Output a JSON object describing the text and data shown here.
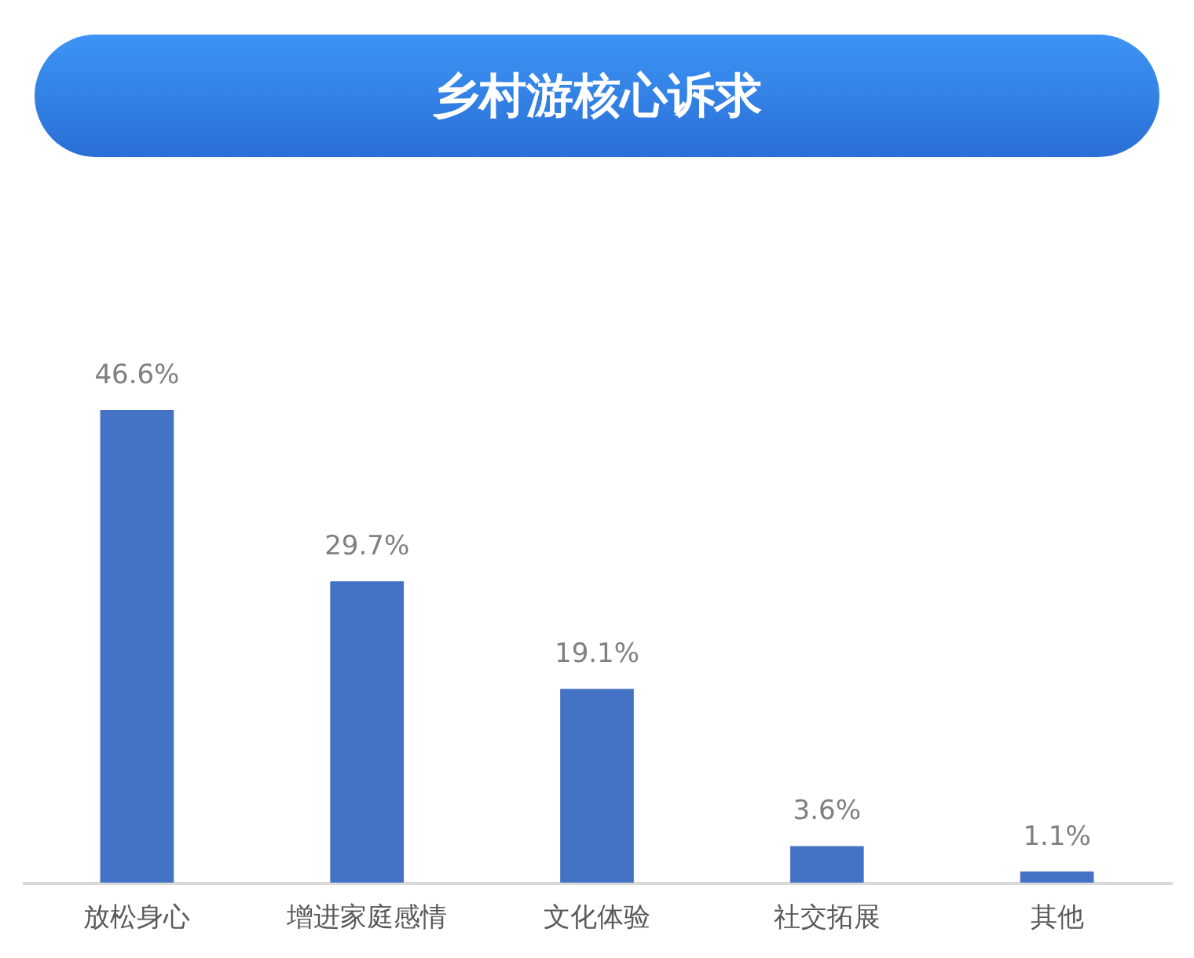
{
  "chart_data": {
    "type": "bar",
    "title": "乡村游核心诉求",
    "categories": [
      "放松身心",
      "增进家庭感情",
      "文化体验",
      "社交拓展",
      "其他"
    ],
    "values": [
      46.6,
      29.7,
      19.1,
      3.6,
      1.1
    ],
    "value_labels": [
      "46.6%",
      "29.7%",
      "19.1%",
      "3.6%",
      "1.1%"
    ],
    "color": "#4472c4"
  }
}
